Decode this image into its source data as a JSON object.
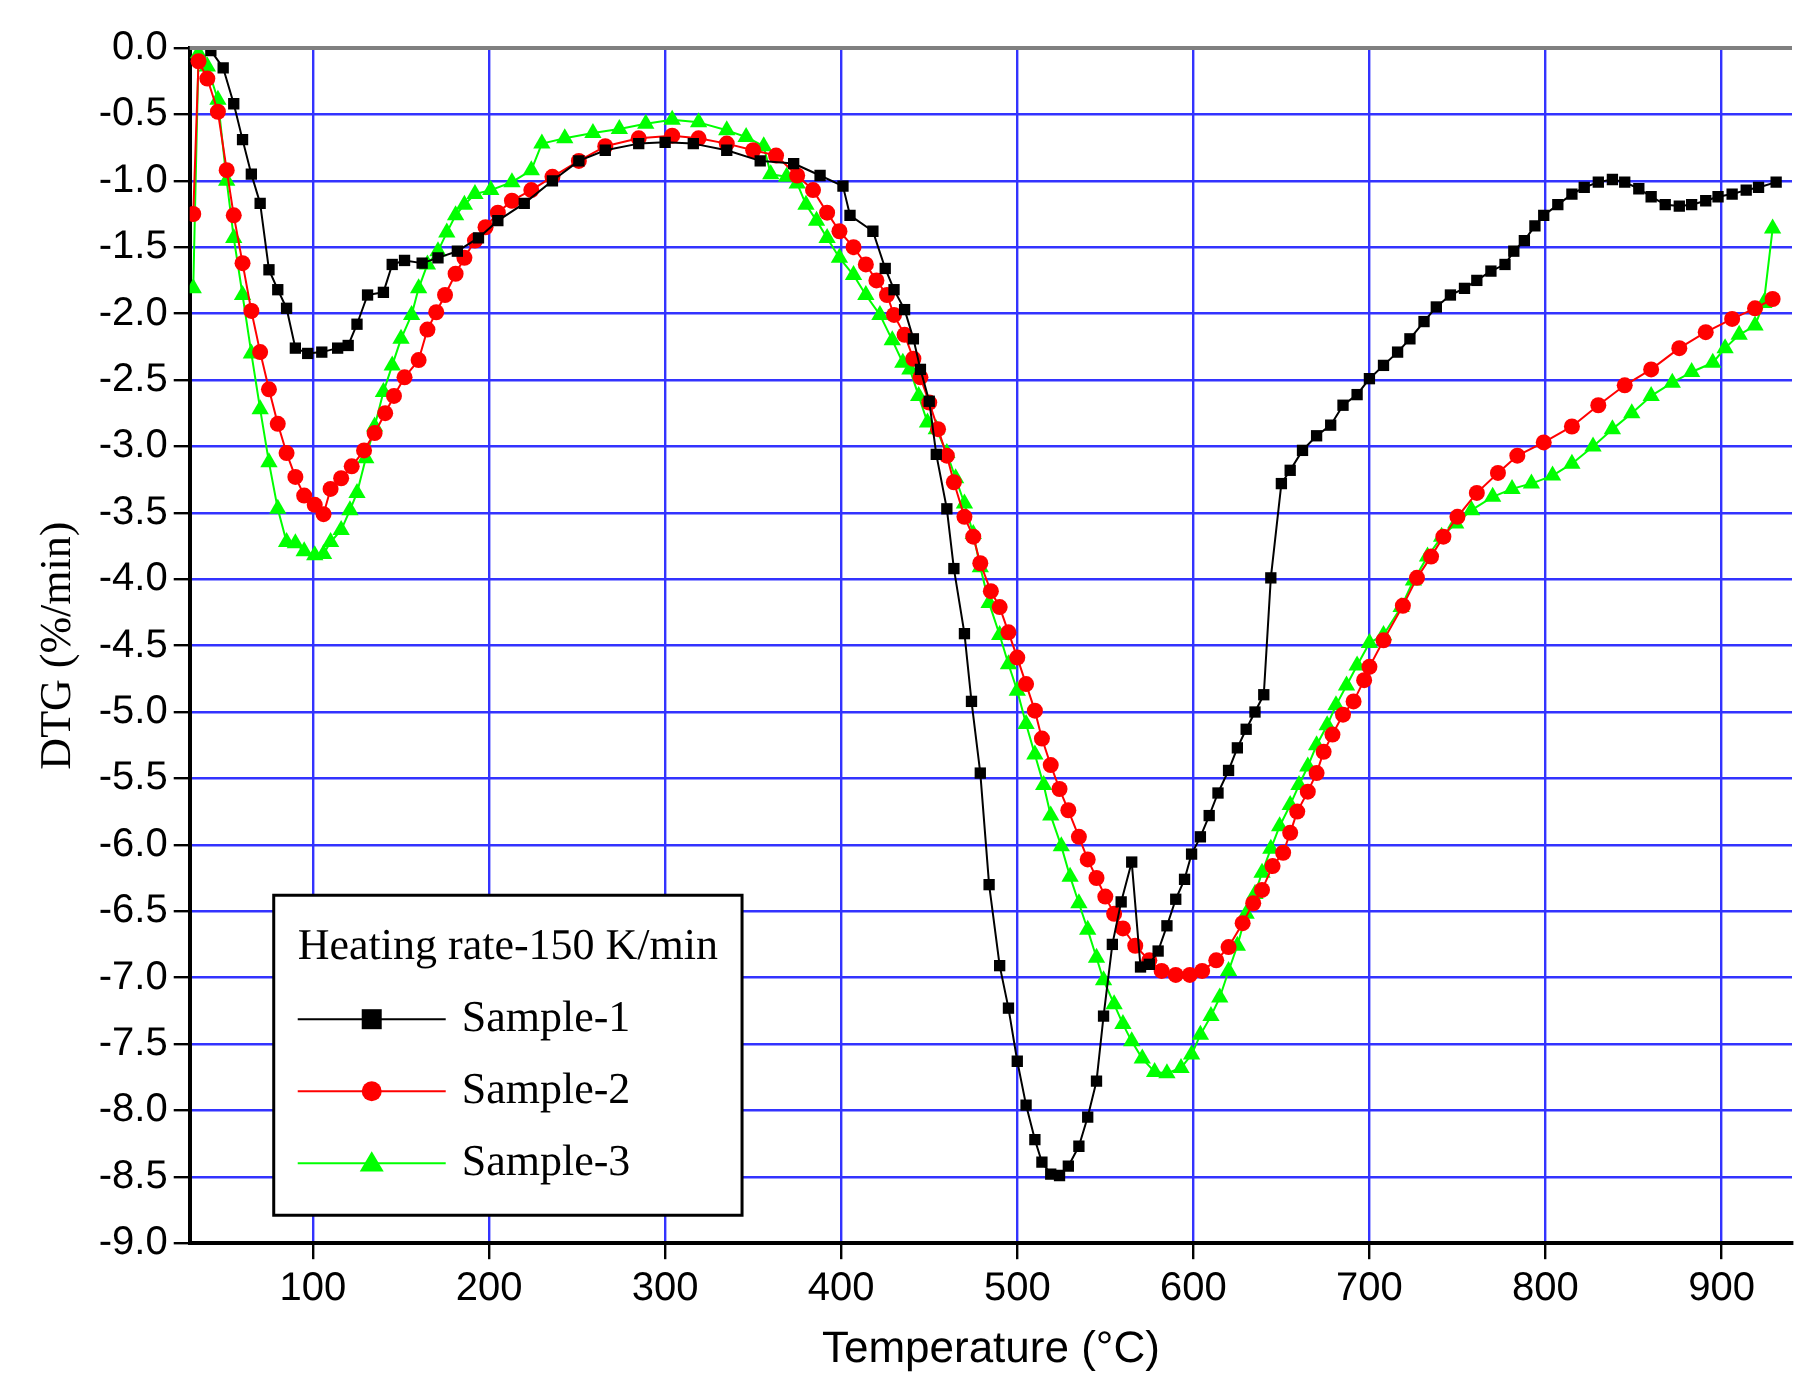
{
  "chart_data": {
    "type": "line",
    "xlabel": "Temperature (°C)",
    "ylabel": "DTG (%/min)",
    "legend_title": "Heating rate-150 K/min",
    "legend": "bottom left",
    "grid": true,
    "xlim": [
      30,
      940
    ],
    "xticks": [
      100,
      200,
      300,
      400,
      500,
      600,
      700,
      800,
      900
    ],
    "ylim": [
      -9,
      0
    ],
    "yticks": [
      {
        "value": 0,
        "label": "0.0"
      },
      -0.5,
      {
        "value": -1,
        "label": "-1.0"
      },
      -1.5,
      {
        "value": -2,
        "label": "-2.0"
      },
      -2.5,
      {
        "value": -3,
        "label": "-3.0"
      },
      -3.5,
      {
        "value": -4,
        "label": "-4.0"
      },
      -4.5,
      {
        "value": -5,
        "label": "-5.0"
      },
      -5.5,
      {
        "value": -6,
        "label": "-6.0"
      },
      -6.5,
      {
        "value": -7,
        "label": "-7.0"
      },
      -7.5,
      {
        "value": -8,
        "label": "-8.0"
      },
      -8.5,
      {
        "value": -9,
        "label": "-9.0"
      }
    ],
    "series": [
      {
        "name": "Sample-1",
        "color": "#000000",
        "marker": "square",
        "x": [
          42,
          49,
          55,
          60,
          65,
          70,
          75,
          80,
          85,
          90,
          97,
          105,
          114,
          120,
          125,
          131,
          140,
          145,
          152,
          162,
          171,
          182,
          194,
          205,
          220,
          236,
          251,
          266,
          285,
          300,
          316,
          335,
          354,
          373,
          388,
          401,
          405,
          418,
          425,
          430,
          436,
          441,
          445,
          450,
          454,
          460,
          464,
          470,
          474,
          479,
          484,
          490,
          495,
          500,
          505,
          510,
          514,
          519,
          524,
          529,
          535,
          540,
          545,
          549,
          554,
          559,
          565,
          570,
          575,
          580,
          585,
          590,
          595,
          599,
          604,
          609,
          614,
          620,
          625,
          630,
          635,
          640,
          644,
          650,
          655,
          662,
          670,
          678,
          685,
          693,
          700,
          708,
          716,
          723,
          731,
          738,
          746,
          754,
          761,
          769,
          777,
          782,
          788,
          794,
          799,
          807,
          815,
          822,
          830,
          838,
          845,
          853,
          860,
          868,
          876,
          883,
          891,
          898,
          906,
          914,
          921,
          931
        ],
        "values": [
          -0.02,
          -0.15,
          -0.42,
          -0.69,
          -0.95,
          -1.17,
          -1.67,
          -1.82,
          -1.96,
          -2.26,
          -2.3,
          -2.29,
          -2.26,
          -2.24,
          -2.08,
          -1.86,
          -1.84,
          -1.63,
          -1.6,
          -1.62,
          -1.58,
          -1.53,
          -1.43,
          -1.3,
          -1.17,
          -1.0,
          -0.85,
          -0.77,
          -0.72,
          -0.71,
          -0.72,
          -0.77,
          -0.85,
          -0.87,
          -0.96,
          -1.04,
          -1.26,
          -1.38,
          -1.66,
          -1.82,
          -1.97,
          -2.19,
          -2.42,
          -2.66,
          -3.06,
          -3.47,
          -3.92,
          -4.41,
          -4.92,
          -5.46,
          -6.3,
          -6.91,
          -7.23,
          -7.63,
          -7.96,
          -8.22,
          -8.39,
          -8.48,
          -8.49,
          -8.42,
          -8.27,
          -8.05,
          -7.78,
          -7.29,
          -6.75,
          -6.43,
          -6.13,
          -6.92,
          -6.9,
          -6.8,
          -6.61,
          -6.41,
          -6.26,
          -6.07,
          -5.94,
          -5.78,
          -5.61,
          -5.44,
          -5.27,
          -5.13,
          -5.0,
          -4.87,
          -3.99,
          -3.28,
          -3.18,
          -3.03,
          -2.92,
          -2.84,
          -2.69,
          -2.61,
          -2.49,
          -2.39,
          -2.29,
          -2.19,
          -2.06,
          -1.95,
          -1.86,
          -1.81,
          -1.75,
          -1.68,
          -1.63,
          -1.53,
          -1.45,
          -1.34,
          -1.26,
          -1.18,
          -1.1,
          -1.05,
          -1.01,
          -0.99,
          -1.01,
          -1.06,
          -1.12,
          -1.18,
          -1.19,
          -1.18,
          -1.15,
          -1.12,
          -1.1,
          -1.07,
          -1.05,
          -1.01
        ]
      },
      {
        "name": "Sample-2",
        "color": "#ff0000",
        "marker": "circle",
        "x": [
          32,
          35,
          40,
          46,
          51,
          55,
          60,
          65,
          70,
          75,
          80,
          85,
          90,
          95,
          101,
          106,
          110,
          116,
          122,
          129,
          135,
          141,
          146,
          152,
          160,
          165,
          170,
          175,
          181,
          186,
          192,
          198,
          205,
          213,
          224,
          236,
          251,
          266,
          285,
          304,
          319,
          335,
          350,
          363,
          375,
          384,
          392,
          399,
          407,
          414,
          420,
          426,
          430,
          436,
          441,
          445,
          450,
          455,
          460,
          464,
          470,
          475,
          479,
          485,
          490,
          495,
          500,
          505,
          510,
          514,
          519,
          524,
          529,
          535,
          540,
          545,
          550,
          555,
          560,
          567,
          575,
          582,
          590,
          598,
          605,
          613,
          620,
          628,
          634,
          639,
          645,
          651,
          655,
          659,
          665,
          670,
          674,
          679,
          685,
          691,
          697,
          700,
          708,
          719,
          727,
          735,
          742,
          750,
          761,
          773,
          784,
          799,
          815,
          830,
          845,
          860,
          876,
          891,
          906,
          919,
          929
        ],
        "values": [
          -1.25,
          -0.1,
          -0.23,
          -0.48,
          -0.92,
          -1.26,
          -1.62,
          -1.98,
          -2.29,
          -2.57,
          -2.83,
          -3.05,
          -3.23,
          -3.37,
          -3.44,
          -3.51,
          -3.32,
          -3.24,
          -3.15,
          -3.03,
          -2.9,
          -2.75,
          -2.62,
          -2.48,
          -2.35,
          -2.12,
          -1.99,
          -1.86,
          -1.7,
          -1.58,
          -1.45,
          -1.35,
          -1.24,
          -1.15,
          -1.07,
          -0.97,
          -0.85,
          -0.74,
          -0.68,
          -0.66,
          -0.68,
          -0.72,
          -0.77,
          -0.81,
          -0.96,
          -1.07,
          -1.24,
          -1.38,
          -1.5,
          -1.63,
          -1.75,
          -1.86,
          -2.01,
          -2.16,
          -2.34,
          -2.48,
          -2.67,
          -2.87,
          -3.07,
          -3.27,
          -3.53,
          -3.68,
          -3.88,
          -4.09,
          -4.21,
          -4.4,
          -4.59,
          -4.79,
          -4.99,
          -5.2,
          -5.4,
          -5.58,
          -5.74,
          -5.94,
          -6.11,
          -6.25,
          -6.39,
          -6.52,
          -6.63,
          -6.76,
          -6.87,
          -6.95,
          -6.98,
          -6.98,
          -6.95,
          -6.87,
          -6.77,
          -6.59,
          -6.44,
          -6.34,
          -6.16,
          -6.06,
          -5.91,
          -5.75,
          -5.6,
          -5.46,
          -5.3,
          -5.17,
          -5.02,
          -4.92,
          -4.76,
          -4.66,
          -4.46,
          -4.2,
          -3.99,
          -3.83,
          -3.68,
          -3.53,
          -3.35,
          -3.2,
          -3.07,
          -2.97,
          -2.85,
          -2.69,
          -2.54,
          -2.42,
          -2.26,
          -2.14,
          -2.04,
          -1.96,
          -1.89
        ]
      },
      {
        "name": "Sample-3",
        "color": "#00ff00",
        "marker": "triangle",
        "x": [
          32,
          35,
          40,
          46,
          51,
          55,
          60,
          65,
          70,
          75,
          80,
          85,
          90,
          95,
          101,
          106,
          110,
          116,
          121,
          125,
          130,
          135,
          140,
          145,
          150,
          156,
          160,
          165,
          171,
          176,
          181,
          186,
          192,
          201,
          213,
          224,
          230,
          243,
          259,
          274,
          289,
          304,
          319,
          335,
          346,
          356,
          360,
          369,
          375,
          380,
          386,
          392,
          399,
          407,
          414,
          422,
          429,
          435,
          439,
          444,
          449,
          454,
          460,
          465,
          470,
          475,
          479,
          484,
          490,
          495,
          500,
          505,
          510,
          515,
          519,
          525,
          530,
          535,
          540,
          545,
          549,
          555,
          560,
          565,
          571,
          578,
          585,
          593,
          599,
          604,
          610,
          615,
          620,
          625,
          630,
          635,
          639,
          644,
          649,
          655,
          660,
          665,
          670,
          676,
          681,
          687,
          693,
          700,
          708,
          718,
          725,
          733,
          741,
          749,
          758,
          770,
          781,
          792,
          804,
          815,
          827,
          838,
          849,
          860,
          872,
          883,
          895,
          902,
          910,
          919,
          924,
          929
        ],
        "values": [
          -1.81,
          -0.04,
          -0.14,
          -0.39,
          -1.0,
          -1.43,
          -1.86,
          -2.3,
          -2.72,
          -3.12,
          -3.47,
          -3.72,
          -3.73,
          -3.79,
          -3.82,
          -3.81,
          -3.72,
          -3.63,
          -3.48,
          -3.35,
          -3.09,
          -2.85,
          -2.59,
          -2.39,
          -2.19,
          -2.01,
          -1.81,
          -1.63,
          -1.53,
          -1.39,
          -1.26,
          -1.18,
          -1.1,
          -1.07,
          -1.01,
          -0.92,
          -0.72,
          -0.68,
          -0.64,
          -0.61,
          -0.57,
          -0.54,
          -0.56,
          -0.62,
          -0.67,
          -0.74,
          -0.95,
          -0.97,
          -1.02,
          -1.18,
          -1.3,
          -1.43,
          -1.58,
          -1.71,
          -1.86,
          -2.01,
          -2.2,
          -2.37,
          -2.42,
          -2.62,
          -2.82,
          -2.87,
          -3.05,
          -3.24,
          -3.43,
          -3.66,
          -3.91,
          -4.18,
          -4.42,
          -4.64,
          -4.84,
          -5.09,
          -5.32,
          -5.55,
          -5.78,
          -6.01,
          -6.24,
          -6.44,
          -6.64,
          -6.85,
          -7.02,
          -7.2,
          -7.35,
          -7.48,
          -7.61,
          -7.71,
          -7.72,
          -7.68,
          -7.58,
          -7.43,
          -7.29,
          -7.15,
          -6.95,
          -6.76,
          -6.52,
          -6.37,
          -6.21,
          -6.03,
          -5.86,
          -5.7,
          -5.55,
          -5.41,
          -5.25,
          -5.1,
          -4.95,
          -4.8,
          -4.65,
          -4.48,
          -4.42,
          -4.21,
          -4.01,
          -3.83,
          -3.68,
          -3.58,
          -3.48,
          -3.38,
          -3.32,
          -3.28,
          -3.22,
          -3.13,
          -3.0,
          -2.87,
          -2.75,
          -2.62,
          -2.52,
          -2.44,
          -2.37,
          -2.26,
          -2.16,
          -2.09,
          -1.92,
          -1.36
        ]
      }
    ]
  }
}
